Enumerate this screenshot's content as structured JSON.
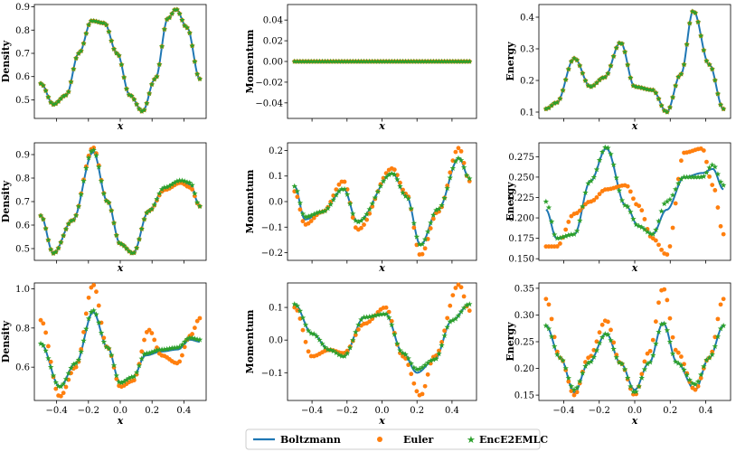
{
  "legend": [
    {
      "name": "Boltzmann",
      "marker": "line",
      "color": "#1f77b4"
    },
    {
      "name": "Euler",
      "marker": "circle",
      "color": "#ff7f0e"
    },
    {
      "name": "EncE2EMLC",
      "marker": "star",
      "color": "#2ca02c"
    }
  ],
  "chart_data": [
    {
      "type": "line",
      "ylabel": "Density",
      "xlabel": "x",
      "xlim": [
        -0.54,
        0.54
      ],
      "ylim": [
        0.42,
        0.91
      ],
      "xticks": [],
      "yticks": [
        0.5,
        0.6,
        0.7,
        0.8,
        0.9
      ],
      "ytick_labels": [
        "0.5",
        "0.6",
        "0.7",
        "0.8",
        "0.9"
      ],
      "series": [
        {
          "name": "Boltzmann",
          "x": [
            -0.5,
            -0.42,
            -0.34,
            -0.26,
            -0.18,
            -0.1,
            -0.02,
            0.06,
            0.14,
            0.22,
            0.3,
            0.35,
            0.42,
            0.5
          ],
          "y": [
            0.57,
            0.48,
            0.52,
            0.7,
            0.84,
            0.83,
            0.7,
            0.52,
            0.45,
            0.59,
            0.85,
            0.89,
            0.81,
            0.59
          ]
        },
        {
          "name": "Euler",
          "x": [
            -0.5,
            -0.42,
            -0.34,
            -0.26,
            -0.18,
            -0.1,
            -0.02,
            0.06,
            0.14,
            0.22,
            0.3,
            0.35,
            0.42,
            0.5
          ],
          "y": [
            0.57,
            0.48,
            0.52,
            0.7,
            0.84,
            0.83,
            0.7,
            0.52,
            0.45,
            0.59,
            0.85,
            0.89,
            0.81,
            0.59
          ]
        },
        {
          "name": "EncE2EMLC",
          "x": [
            -0.5,
            -0.42,
            -0.34,
            -0.26,
            -0.18,
            -0.1,
            -0.02,
            0.06,
            0.14,
            0.22,
            0.3,
            0.35,
            0.42,
            0.5
          ],
          "y": [
            0.57,
            0.48,
            0.52,
            0.7,
            0.84,
            0.83,
            0.7,
            0.52,
            0.45,
            0.59,
            0.85,
            0.89,
            0.81,
            0.59
          ]
        }
      ]
    },
    {
      "type": "line",
      "ylabel": "Momentum",
      "xlabel": "x",
      "xlim": [
        -0.54,
        0.54
      ],
      "ylim": [
        -0.055,
        0.055
      ],
      "xticks": [],
      "yticks": [
        -0.04,
        -0.02,
        0.0,
        0.02,
        0.04
      ],
      "ytick_labels": [
        "−0.04",
        "−0.02",
        "0.00",
        "0.02",
        "0.04"
      ],
      "series": [
        {
          "name": "Boltzmann",
          "x": [
            -0.5,
            -0.25,
            0.0,
            0.25,
            0.5
          ],
          "y": [
            0,
            0,
            0,
            0,
            0
          ]
        },
        {
          "name": "Euler",
          "x": [
            -0.5,
            -0.25,
            0.0,
            0.25,
            0.5
          ],
          "y": [
            0,
            0,
            0,
            0,
            0
          ]
        },
        {
          "name": "EncE2EMLC",
          "x": [
            -0.5,
            -0.25,
            0.0,
            0.25,
            0.5
          ],
          "y": [
            0,
            0,
            0,
            0,
            0
          ]
        }
      ]
    },
    {
      "type": "line",
      "ylabel": "Energy",
      "xlabel": "x",
      "xlim": [
        -0.54,
        0.54
      ],
      "ylim": [
        0.08,
        0.44
      ],
      "xticks": [],
      "yticks": [
        0.1,
        0.2,
        0.3,
        0.4
      ],
      "ytick_labels": [
        "0.1",
        "0.2",
        "0.3",
        "0.4"
      ],
      "series": [
        {
          "name": "Boltzmann",
          "x": [
            -0.5,
            -0.44,
            -0.34,
            -0.25,
            -0.17,
            -0.08,
            0.0,
            0.1,
            0.18,
            0.26,
            0.33,
            0.42,
            0.5
          ],
          "y": [
            0.11,
            0.13,
            0.27,
            0.18,
            0.21,
            0.32,
            0.18,
            0.17,
            0.1,
            0.22,
            0.42,
            0.25,
            0.11
          ]
        },
        {
          "name": "Euler",
          "x": [
            -0.5,
            -0.44,
            -0.34,
            -0.25,
            -0.17,
            -0.08,
            0.0,
            0.1,
            0.18,
            0.26,
            0.33,
            0.42,
            0.5
          ],
          "y": [
            0.11,
            0.13,
            0.27,
            0.18,
            0.21,
            0.32,
            0.18,
            0.17,
            0.1,
            0.22,
            0.42,
            0.25,
            0.11
          ]
        },
        {
          "name": "EncE2EMLC",
          "x": [
            -0.5,
            -0.44,
            -0.34,
            -0.25,
            -0.17,
            -0.08,
            0.0,
            0.1,
            0.18,
            0.26,
            0.33,
            0.42,
            0.5
          ],
          "y": [
            0.11,
            0.13,
            0.27,
            0.18,
            0.21,
            0.32,
            0.18,
            0.17,
            0.1,
            0.22,
            0.42,
            0.25,
            0.11
          ]
        }
      ]
    },
    {
      "type": "line",
      "ylabel": "Density",
      "xlabel": "x",
      "xlim": [
        -0.54,
        0.54
      ],
      "ylim": [
        0.45,
        0.95
      ],
      "xticks": [],
      "yticks": [
        0.5,
        0.6,
        0.7,
        0.8,
        0.9
      ],
      "ytick_labels": [
        "0.5",
        "0.6",
        "0.7",
        "0.8",
        "0.9"
      ],
      "series": [
        {
          "name": "Boltzmann",
          "x": [
            -0.5,
            -0.42,
            -0.3,
            -0.17,
            -0.08,
            0.0,
            0.08,
            0.18,
            0.28,
            0.38,
            0.44,
            0.5
          ],
          "y": [
            0.64,
            0.48,
            0.62,
            0.91,
            0.7,
            0.52,
            0.48,
            0.66,
            0.76,
            0.79,
            0.77,
            0.68
          ]
        },
        {
          "name": "Euler",
          "x": [
            -0.5,
            -0.42,
            -0.3,
            -0.17,
            -0.08,
            0.0,
            0.08,
            0.18,
            0.28,
            0.38,
            0.44,
            0.5
          ],
          "y": [
            0.64,
            0.48,
            0.62,
            0.93,
            0.7,
            0.52,
            0.48,
            0.66,
            0.75,
            0.78,
            0.76,
            0.68
          ]
        },
        {
          "name": "EncE2EMLC",
          "x": [
            -0.5,
            -0.42,
            -0.3,
            -0.17,
            -0.08,
            0.0,
            0.08,
            0.18,
            0.28,
            0.38,
            0.44,
            0.5
          ],
          "y": [
            0.64,
            0.48,
            0.62,
            0.92,
            0.7,
            0.52,
            0.48,
            0.66,
            0.76,
            0.79,
            0.78,
            0.68
          ]
        }
      ]
    },
    {
      "type": "line",
      "ylabel": "Momentum",
      "xlabel": "x",
      "xlim": [
        -0.54,
        0.54
      ],
      "ylim": [
        -0.23,
        0.23
      ],
      "xticks": [],
      "yticks": [
        -0.2,
        -0.1,
        0.0,
        0.1,
        0.2
      ],
      "ytick_labels": [
        "−0.2",
        "−0.1",
        "0.0",
        "0.1",
        "0.2"
      ],
      "series": [
        {
          "name": "Boltzmann",
          "x": [
            -0.5,
            -0.44,
            -0.34,
            -0.22,
            -0.14,
            0.06,
            0.14,
            0.22,
            0.32,
            0.44,
            0.5
          ],
          "y": [
            0.06,
            -0.07,
            -0.04,
            0.05,
            -0.08,
            0.11,
            0.02,
            -0.17,
            -0.03,
            0.17,
            0.09
          ]
        },
        {
          "name": "Euler",
          "x": [
            -0.5,
            -0.44,
            -0.34,
            -0.22,
            -0.14,
            0.06,
            0.14,
            0.22,
            0.32,
            0.44,
            0.5
          ],
          "y": [
            0.04,
            -0.09,
            -0.04,
            0.08,
            -0.11,
            0.13,
            0.03,
            -0.21,
            -0.04,
            0.21,
            0.08
          ]
        },
        {
          "name": "EncE2EMLC",
          "x": [
            -0.5,
            -0.44,
            -0.34,
            -0.22,
            -0.14,
            0.06,
            0.14,
            0.22,
            0.32,
            0.44,
            0.5
          ],
          "y": [
            0.06,
            -0.06,
            -0.04,
            0.05,
            -0.08,
            0.11,
            0.02,
            -0.17,
            -0.03,
            0.17,
            0.09
          ]
        }
      ]
    },
    {
      "type": "line",
      "ylabel": "Energy",
      "xlabel": "x",
      "xlim": [
        -0.54,
        0.54
      ],
      "ylim": [
        0.148,
        0.292
      ],
      "xticks": [],
      "yticks": [
        0.15,
        0.175,
        0.2,
        0.225,
        0.25,
        0.275
      ],
      "ytick_labels": [
        "0.150",
        "0.175",
        "0.200",
        "0.225",
        "0.250",
        "0.275"
      ],
      "series": [
        {
          "name": "Boltzmann",
          "x": [
            -0.5,
            -0.44,
            -0.34,
            -0.25,
            -0.16,
            -0.05,
            0.02,
            0.1,
            0.18,
            0.28,
            0.38,
            0.44,
            0.5
          ],
          "y": [
            0.21,
            0.175,
            0.18,
            0.245,
            0.285,
            0.215,
            0.19,
            0.18,
            0.21,
            0.25,
            0.255,
            0.26,
            0.235
          ]
        },
        {
          "name": "Euler",
          "x": [
            -0.5,
            -0.44,
            -0.34,
            -0.25,
            -0.16,
            -0.05,
            0.02,
            0.1,
            0.18,
            0.28,
            0.38,
            0.44,
            0.5
          ],
          "y": [
            0.165,
            0.165,
            0.205,
            0.22,
            0.235,
            0.24,
            0.215,
            0.175,
            0.155,
            0.28,
            0.285,
            0.24,
            0.18
          ]
        },
        {
          "name": "EncE2EMLC",
          "x": [
            -0.5,
            -0.44,
            -0.34,
            -0.25,
            -0.16,
            -0.05,
            0.02,
            0.1,
            0.18,
            0.28,
            0.38,
            0.44,
            0.5
          ],
          "y": [
            0.22,
            0.175,
            0.18,
            0.245,
            0.287,
            0.215,
            0.19,
            0.18,
            0.22,
            0.25,
            0.25,
            0.265,
            0.24
          ]
        }
      ]
    },
    {
      "type": "line",
      "ylabel": "Density",
      "xlabel": "x",
      "xlim": [
        -0.54,
        0.54
      ],
      "ylim": [
        0.43,
        1.03
      ],
      "xticks": [
        -0.4,
        -0.2,
        0.0,
        0.2,
        0.4
      ],
      "xtick_labels": [
        "−0.4",
        "−0.2",
        "0.0",
        "0.2",
        "0.4"
      ],
      "yticks": [
        0.6,
        0.8,
        1.0
      ],
      "ytick_labels": [
        "0.6",
        "0.8",
        "1.0"
      ],
      "series": [
        {
          "name": "Boltzmann",
          "x": [
            -0.5,
            -0.38,
            -0.28,
            -0.17,
            -0.08,
            0.0,
            0.08,
            0.16,
            0.26,
            0.36,
            0.44,
            0.5
          ],
          "y": [
            0.72,
            0.5,
            0.62,
            0.88,
            0.7,
            0.52,
            0.55,
            0.66,
            0.68,
            0.69,
            0.74,
            0.73
          ]
        },
        {
          "name": "Euler",
          "x": [
            -0.5,
            -0.38,
            -0.28,
            -0.17,
            -0.08,
            0.0,
            0.08,
            0.18,
            0.26,
            0.36,
            0.44,
            0.5
          ],
          "y": [
            0.84,
            0.45,
            0.6,
            1.02,
            0.7,
            0.5,
            0.53,
            0.79,
            0.66,
            0.62,
            0.76,
            0.85
          ]
        },
        {
          "name": "EncE2EMLC",
          "x": [
            -0.5,
            -0.38,
            -0.28,
            -0.17,
            -0.08,
            0.0,
            0.08,
            0.16,
            0.26,
            0.36,
            0.44,
            0.5
          ],
          "y": [
            0.72,
            0.5,
            0.62,
            0.89,
            0.7,
            0.52,
            0.55,
            0.67,
            0.69,
            0.7,
            0.75,
            0.74
          ]
        }
      ]
    },
    {
      "type": "line",
      "ylabel": "Momentum",
      "xlabel": "x",
      "xlim": [
        -0.54,
        0.54
      ],
      "ylim": [
        -0.185,
        0.175
      ],
      "xticks": [
        -0.4,
        -0.2,
        0.0,
        0.2,
        0.4
      ],
      "xtick_labels": [
        "−0.4",
        "−0.2",
        "0.0",
        "0.2",
        "0.4"
      ],
      "yticks": [
        -0.1,
        0.0,
        0.1
      ],
      "ytick_labels": [
        "−0.1",
        "0.0",
        "0.1"
      ],
      "series": [
        {
          "name": "Boltzmann",
          "x": [
            -0.5,
            -0.4,
            -0.3,
            -0.22,
            -0.1,
            0.02,
            0.12,
            0.2,
            0.3,
            0.4,
            0.5
          ],
          "y": [
            0.11,
            0.02,
            -0.03,
            -0.05,
            0.07,
            0.08,
            -0.04,
            -0.1,
            -0.06,
            0.06,
            0.11
          ]
        },
        {
          "name": "Euler",
          "x": [
            -0.5,
            -0.4,
            -0.3,
            -0.22,
            -0.1,
            0.02,
            0.12,
            0.22,
            0.3,
            0.44,
            0.5
          ],
          "y": [
            0.1,
            -0.05,
            -0.03,
            -0.04,
            0.05,
            0.1,
            -0.05,
            -0.17,
            -0.05,
            0.17,
            0.09
          ]
        },
        {
          "name": "EncE2EMLC",
          "x": [
            -0.5,
            -0.4,
            -0.3,
            -0.22,
            -0.1,
            0.02,
            0.12,
            0.2,
            0.3,
            0.4,
            0.5
          ],
          "y": [
            0.11,
            0.02,
            -0.03,
            -0.05,
            0.07,
            0.08,
            -0.04,
            -0.09,
            -0.06,
            0.06,
            0.11
          ]
        }
      ]
    },
    {
      "type": "line",
      "ylabel": "Energy",
      "xlabel": "x",
      "xlim": [
        -0.54,
        0.54
      ],
      "ylim": [
        0.14,
        0.36
      ],
      "xticks": [
        -0.4,
        -0.2,
        0.0,
        0.2,
        0.4
      ],
      "xtick_labels": [
        "−0.4",
        "−0.2",
        "0.0",
        "0.2",
        "0.4"
      ],
      "yticks": [
        0.15,
        0.2,
        0.25,
        0.3,
        0.35
      ],
      "ytick_labels": [
        "0.15",
        "0.20",
        "0.25",
        "0.30",
        "0.35"
      ],
      "series": [
        {
          "name": "Boltzmann",
          "x": [
            -0.5,
            -0.42,
            -0.34,
            -0.26,
            -0.16,
            -0.08,
            0.0,
            0.08,
            0.16,
            0.24,
            0.34,
            0.42,
            0.5
          ],
          "y": [
            0.28,
            0.22,
            0.155,
            0.21,
            0.265,
            0.21,
            0.16,
            0.21,
            0.285,
            0.21,
            0.16,
            0.22,
            0.28
          ]
        },
        {
          "name": "Euler",
          "x": [
            -0.5,
            -0.42,
            -0.34,
            -0.26,
            -0.16,
            -0.08,
            0.0,
            0.08,
            0.16,
            0.24,
            0.34,
            0.42,
            0.5
          ],
          "y": [
            0.33,
            0.22,
            0.15,
            0.22,
            0.29,
            0.21,
            0.15,
            0.23,
            0.35,
            0.23,
            0.16,
            0.22,
            0.33
          ]
        },
        {
          "name": "EncE2EMLC",
          "x": [
            -0.5,
            -0.42,
            -0.34,
            -0.26,
            -0.16,
            -0.08,
            0.0,
            0.08,
            0.16,
            0.24,
            0.34,
            0.42,
            0.5
          ],
          "y": [
            0.28,
            0.22,
            0.16,
            0.21,
            0.265,
            0.21,
            0.155,
            0.21,
            0.285,
            0.21,
            0.17,
            0.22,
            0.28
          ]
        }
      ]
    }
  ]
}
